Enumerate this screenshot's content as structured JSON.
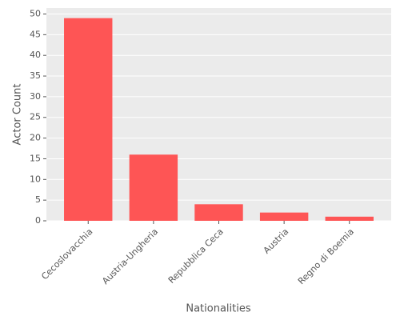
{
  "chart_data": {
    "type": "bar",
    "x_label": "Nationalities",
    "y_label": "Actor Count",
    "categories": [
      "Cecoslovacchia",
      "Austria-Ungheria",
      "Repubblica Ceca",
      "Austria",
      "Regno di Boemia"
    ],
    "values": [
      49,
      16,
      4,
      2,
      1
    ],
    "color": "#fe5555",
    "ylim": [
      0,
      51.45
    ],
    "yticks": [
      0,
      5,
      10,
      15,
      20,
      25,
      30,
      35,
      40,
      45,
      50
    ],
    "grid": true
  }
}
